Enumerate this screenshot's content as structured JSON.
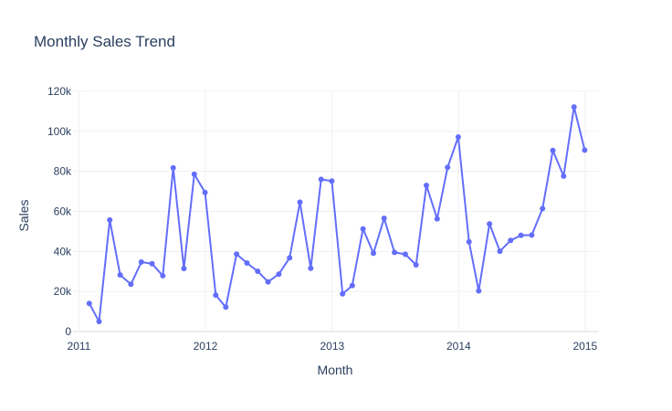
{
  "chart_data": {
    "type": "line",
    "title": "Monthly Sales Trend",
    "xlabel": "Month",
    "ylabel": "Sales",
    "ylim": [
      0,
      120000
    ],
    "xlim": [
      "2010-12-15",
      "2015-02-10"
    ],
    "y_ticks": [
      0,
      20000,
      40000,
      60000,
      80000,
      100000,
      120000
    ],
    "y_tick_labels": [
      "0",
      "20k",
      "40k",
      "60k",
      "80k",
      "100k",
      "120k"
    ],
    "x_ticks": [
      "2011-01-01",
      "2012-01-01",
      "2013-01-01",
      "2014-01-01",
      "2015-01-01"
    ],
    "x_tick_labels": [
      "2011",
      "2012",
      "2013",
      "2014",
      "2015"
    ],
    "grid": true,
    "line_color": "#636efa",
    "series": [
      {
        "x": [
          "2011-01-31",
          "2011-02-28",
          "2011-03-31",
          "2011-04-30",
          "2011-05-31",
          "2011-06-30",
          "2011-07-31",
          "2011-08-31",
          "2011-09-30",
          "2011-10-31",
          "2011-11-30",
          "2011-12-31",
          "2012-01-31",
          "2012-02-29",
          "2012-03-31",
          "2012-04-30",
          "2012-05-31",
          "2012-06-30",
          "2012-07-31",
          "2012-08-31",
          "2012-09-30",
          "2012-10-31",
          "2012-11-30",
          "2012-12-31",
          "2013-01-31",
          "2013-02-28",
          "2013-03-31",
          "2013-04-30",
          "2013-05-31",
          "2013-06-30",
          "2013-07-31",
          "2013-08-31",
          "2013-09-30",
          "2013-10-31",
          "2013-11-30",
          "2013-12-31",
          "2014-01-31",
          "2014-02-28",
          "2014-03-31",
          "2014-04-30",
          "2014-05-31",
          "2014-06-30",
          "2014-07-31",
          "2014-08-31",
          "2014-09-30",
          "2014-10-31",
          "2014-11-30",
          "2014-12-31"
        ],
        "values": [
          14000,
          5000,
          55700,
          28300,
          23600,
          34700,
          33900,
          27900,
          81800,
          31500,
          78600,
          69500,
          18200,
          12200,
          38700,
          34200,
          30100,
          24800,
          28700,
          36800,
          64600,
          31600,
          76000,
          75200,
          18800,
          23000,
          51300,
          39100,
          56600,
          39500,
          38600,
          33300,
          73000,
          56300,
          82000,
          97200,
          44800,
          20300,
          53800,
          40100,
          45500,
          48100,
          48200,
          61400,
          90500,
          77600,
          112200,
          90600
        ]
      }
    ]
  }
}
